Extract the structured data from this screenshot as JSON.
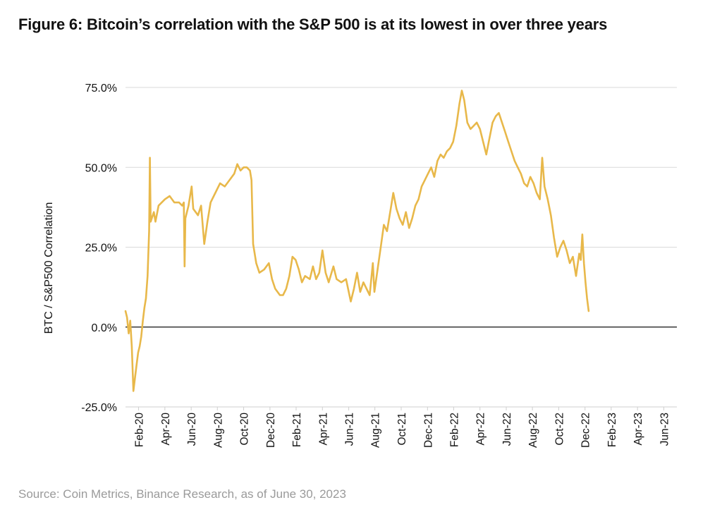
{
  "figure": {
    "title": "Figure 6: Bitcoin’s correlation with the S&P 500 is at its lowest in over three years",
    "source": "Source: Coin Metrics, Binance Research, as of June 30, 2023"
  },
  "chart_data": {
    "type": "line",
    "title": "Figure 6: Bitcoin’s correlation with the S&P 500 is at its lowest in over three years",
    "xlabel": "",
    "ylabel": "BTC / S&P500 Correlation",
    "ylim": [
      -0.25,
      0.75
    ],
    "yticks": [
      {
        "value": 0.75,
        "label": "75.0%"
      },
      {
        "value": 0.5,
        "label": "50.0%"
      },
      {
        "value": 0.25,
        "label": "25.0%"
      },
      {
        "value": 0.0,
        "label": "0.0%"
      },
      {
        "value": -0.25,
        "label": "-25.0%"
      }
    ],
    "xlim": [
      2020.0,
      2023.5
    ],
    "xticks": [
      {
        "value": 2020.083,
        "label": "Feb-20"
      },
      {
        "value": 2020.25,
        "label": "Apr-20"
      },
      {
        "value": 2020.417,
        "label": "Jun-20"
      },
      {
        "value": 2020.583,
        "label": "Aug-20"
      },
      {
        "value": 2020.75,
        "label": "Oct-20"
      },
      {
        "value": 2020.917,
        "label": "Dec-20"
      },
      {
        "value": 2021.083,
        "label": "Feb-21"
      },
      {
        "value": 2021.25,
        "label": "Apr-21"
      },
      {
        "value": 2021.417,
        "label": "Jun-21"
      },
      {
        "value": 2021.583,
        "label": "Aug-21"
      },
      {
        "value": 2021.75,
        "label": "Oct-21"
      },
      {
        "value": 2021.917,
        "label": "Dec-21"
      },
      {
        "value": 2022.083,
        "label": "Feb-22"
      },
      {
        "value": 2022.25,
        "label": "Apr-22"
      },
      {
        "value": 2022.417,
        "label": "Jun-22"
      },
      {
        "value": 2022.583,
        "label": "Aug-22"
      },
      {
        "value": 2022.75,
        "label": "Oct-22"
      },
      {
        "value": 2022.917,
        "label": "Dec-22"
      },
      {
        "value": 2023.083,
        "label": "Feb-23"
      },
      {
        "value": 2023.25,
        "label": "Apr-23"
      },
      {
        "value": 2023.417,
        "label": "Jun-23"
      }
    ],
    "grid": true,
    "zero_line": true,
    "line_color": "#e8b84a",
    "grid_color": "#d9d9d9",
    "series": [
      {
        "name": "BTC / S&P500 Correlation",
        "points": [
          [
            2020.0,
            0.05
          ],
          [
            2020.01,
            0.03
          ],
          [
            2020.02,
            -0.02
          ],
          [
            2020.03,
            0.02
          ],
          [
            2020.04,
            -0.06
          ],
          [
            2020.05,
            -0.2
          ],
          [
            2020.06,
            -0.16
          ],
          [
            2020.07,
            -0.12
          ],
          [
            2020.08,
            -0.08
          ],
          [
            2020.09,
            -0.06
          ],
          [
            2020.1,
            -0.03
          ],
          [
            2020.11,
            0.02
          ],
          [
            2020.12,
            0.06
          ],
          [
            2020.13,
            0.09
          ],
          [
            2020.14,
            0.16
          ],
          [
            2020.15,
            0.3
          ],
          [
            2020.155,
            0.53
          ],
          [
            2020.16,
            0.33
          ],
          [
            2020.18,
            0.36
          ],
          [
            2020.19,
            0.33
          ],
          [
            2020.21,
            0.38
          ],
          [
            2020.23,
            0.39
          ],
          [
            2020.25,
            0.4
          ],
          [
            2020.28,
            0.41
          ],
          [
            2020.31,
            0.39
          ],
          [
            2020.34,
            0.39
          ],
          [
            2020.36,
            0.38
          ],
          [
            2020.37,
            0.39
          ],
          [
            2020.375,
            0.19
          ],
          [
            2020.38,
            0.34
          ],
          [
            2020.4,
            0.38
          ],
          [
            2020.42,
            0.44
          ],
          [
            2020.43,
            0.37
          ],
          [
            2020.46,
            0.35
          ],
          [
            2020.48,
            0.38
          ],
          [
            2020.5,
            0.26
          ],
          [
            2020.52,
            0.33
          ],
          [
            2020.54,
            0.39
          ],
          [
            2020.57,
            0.42
          ],
          [
            2020.6,
            0.45
          ],
          [
            2020.63,
            0.44
          ],
          [
            2020.66,
            0.46
          ],
          [
            2020.69,
            0.48
          ],
          [
            2020.71,
            0.51
          ],
          [
            2020.73,
            0.49
          ],
          [
            2020.75,
            0.5
          ],
          [
            2020.77,
            0.5
          ],
          [
            2020.79,
            0.49
          ],
          [
            2020.8,
            0.46
          ],
          [
            2020.81,
            0.26
          ],
          [
            2020.83,
            0.2
          ],
          [
            2020.85,
            0.17
          ],
          [
            2020.88,
            0.18
          ],
          [
            2020.91,
            0.2
          ],
          [
            2020.93,
            0.15
          ],
          [
            2020.95,
            0.12
          ],
          [
            2020.98,
            0.1
          ],
          [
            2021.0,
            0.1
          ],
          [
            2021.02,
            0.12
          ],
          [
            2021.04,
            0.16
          ],
          [
            2021.06,
            0.22
          ],
          [
            2021.08,
            0.21
          ],
          [
            2021.1,
            0.18
          ],
          [
            2021.12,
            0.14
          ],
          [
            2021.14,
            0.16
          ],
          [
            2021.17,
            0.15
          ],
          [
            2021.19,
            0.19
          ],
          [
            2021.21,
            0.15
          ],
          [
            2021.23,
            0.17
          ],
          [
            2021.25,
            0.24
          ],
          [
            2021.27,
            0.17
          ],
          [
            2021.29,
            0.14
          ],
          [
            2021.32,
            0.19
          ],
          [
            2021.34,
            0.15
          ],
          [
            2021.37,
            0.14
          ],
          [
            2021.4,
            0.15
          ],
          [
            2021.43,
            0.08
          ],
          [
            2021.45,
            0.12
          ],
          [
            2021.47,
            0.17
          ],
          [
            2021.49,
            0.11
          ],
          [
            2021.51,
            0.14
          ],
          [
            2021.55,
            0.1
          ],
          [
            2021.57,
            0.2
          ],
          [
            2021.58,
            0.11
          ],
          [
            2021.6,
            0.18
          ],
          [
            2021.62,
            0.25
          ],
          [
            2021.64,
            0.32
          ],
          [
            2021.66,
            0.3
          ],
          [
            2021.68,
            0.36
          ],
          [
            2021.7,
            0.42
          ],
          [
            2021.72,
            0.37
          ],
          [
            2021.74,
            0.34
          ],
          [
            2021.76,
            0.32
          ],
          [
            2021.78,
            0.36
          ],
          [
            2021.8,
            0.31
          ],
          [
            2021.82,
            0.34
          ],
          [
            2021.84,
            0.38
          ],
          [
            2021.86,
            0.4
          ],
          [
            2021.88,
            0.44
          ],
          [
            2021.9,
            0.46
          ],
          [
            2021.92,
            0.48
          ],
          [
            2021.94,
            0.5
          ],
          [
            2021.96,
            0.47
          ],
          [
            2021.98,
            0.52
          ],
          [
            2022.0,
            0.54
          ],
          [
            2022.02,
            0.53
          ],
          [
            2022.04,
            0.55
          ],
          [
            2022.06,
            0.56
          ],
          [
            2022.08,
            0.58
          ],
          [
            2022.1,
            0.63
          ],
          [
            2022.12,
            0.7
          ],
          [
            2022.135,
            0.74
          ],
          [
            2022.15,
            0.71
          ],
          [
            2022.17,
            0.64
          ],
          [
            2022.19,
            0.62
          ],
          [
            2022.21,
            0.63
          ],
          [
            2022.23,
            0.64
          ],
          [
            2022.25,
            0.62
          ],
          [
            2022.27,
            0.58
          ],
          [
            2022.29,
            0.54
          ],
          [
            2022.31,
            0.59
          ],
          [
            2022.33,
            0.64
          ],
          [
            2022.35,
            0.66
          ],
          [
            2022.37,
            0.67
          ],
          [
            2022.39,
            0.64
          ],
          [
            2022.41,
            0.61
          ],
          [
            2022.43,
            0.58
          ],
          [
            2022.45,
            0.55
          ],
          [
            2022.47,
            0.52
          ],
          [
            2022.49,
            0.5
          ],
          [
            2022.51,
            0.48
          ],
          [
            2022.53,
            0.45
          ],
          [
            2022.55,
            0.44
          ],
          [
            2022.57,
            0.47
          ],
          [
            2022.59,
            0.45
          ],
          [
            2022.61,
            0.42
          ],
          [
            2022.63,
            0.4
          ],
          [
            2022.645,
            0.53
          ],
          [
            2022.66,
            0.44
          ],
          [
            2022.68,
            0.4
          ],
          [
            2022.7,
            0.35
          ],
          [
            2022.72,
            0.28
          ],
          [
            2022.74,
            0.22
          ],
          [
            2022.76,
            0.25
          ],
          [
            2022.78,
            0.27
          ],
          [
            2022.8,
            0.24
          ],
          [
            2022.82,
            0.2
          ],
          [
            2022.84,
            0.22
          ],
          [
            2022.86,
            0.16
          ],
          [
            2022.88,
            0.23
          ],
          [
            2022.89,
            0.21
          ],
          [
            2022.9,
            0.29
          ],
          [
            2022.91,
            0.2
          ],
          [
            2022.92,
            0.14
          ],
          [
            2022.93,
            0.09
          ],
          [
            2022.94,
            0.05
          ]
        ]
      }
    ]
  }
}
